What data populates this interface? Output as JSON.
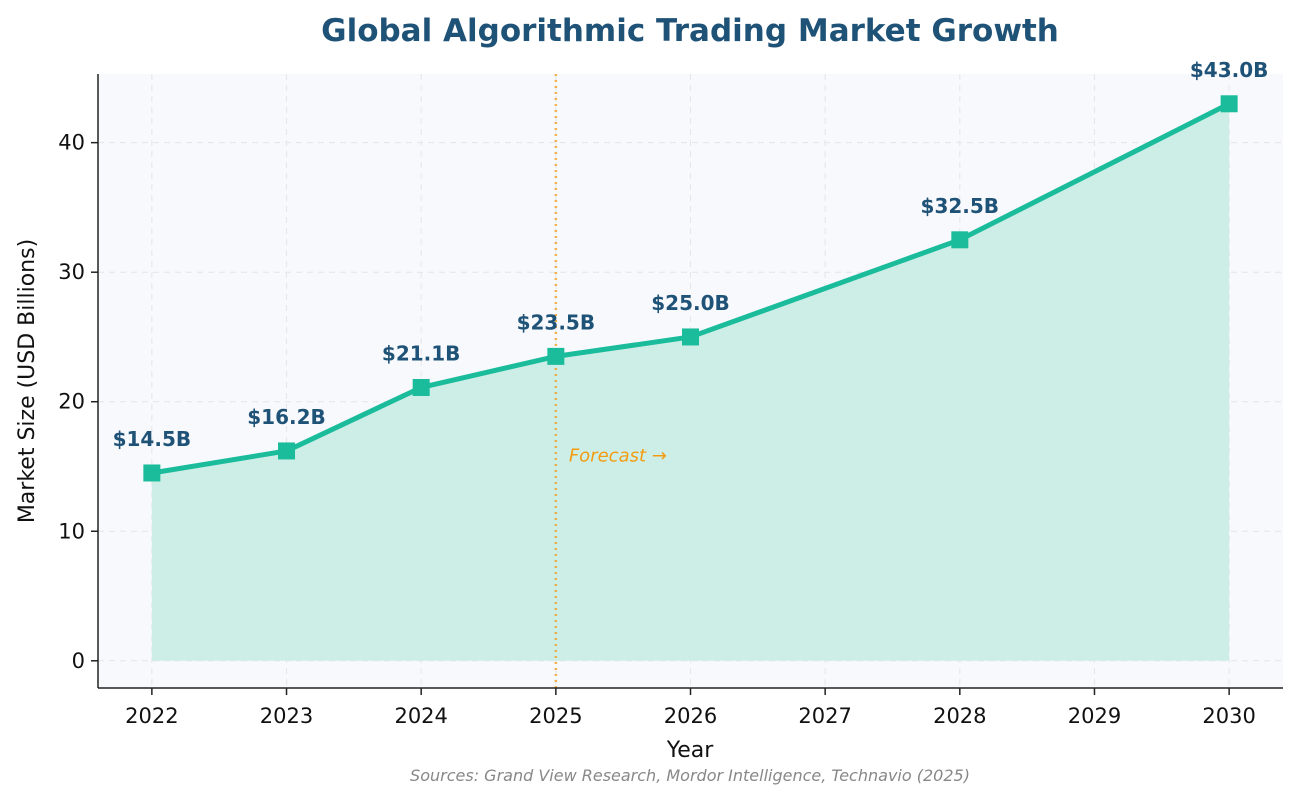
{
  "chart_data": {
    "type": "area",
    "title": "Global Algorithmic Trading Market Growth",
    "xlabel": "Year",
    "ylabel": "Market Size (USD Billions)",
    "x_ticks": [
      "2022",
      "2023",
      "2024",
      "2025",
      "2026",
      "2027",
      "2028",
      "2029",
      "2030"
    ],
    "y_ticks": [
      "0",
      "10",
      "20",
      "30",
      "40"
    ],
    "xlim": [
      2021.6,
      2030.4
    ],
    "ylim": [
      -2.1,
      45.3
    ],
    "grid": true,
    "series": [
      {
        "x": [
          2022,
          2023,
          2024,
          2025,
          2026,
          2028,
          2030
        ],
        "values": [
          14.5,
          16.2,
          21.1,
          23.5,
          25.0,
          32.5,
          43.0
        ],
        "labels": [
          "$14.5B",
          "$16.2B",
          "$21.1B",
          "$23.5B",
          "$25.0B",
          "$32.5B",
          "$43.0B"
        ],
        "color": "#1abc9c",
        "fill_color": "#cdeee6"
      }
    ],
    "forecast_line": {
      "x": 2025,
      "label": "Forecast →",
      "color": "#f39c12"
    },
    "source": "Sources: Grand View Research, Mordor Intelligence, Technavio (2025)"
  }
}
